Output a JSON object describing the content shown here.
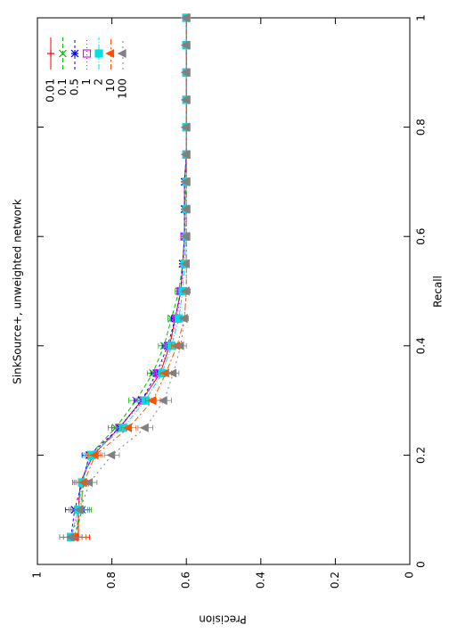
{
  "chart_data": {
    "type": "line",
    "title": "SinkSource+, unweighted network",
    "x_label": "Recall",
    "y_label": "Precision",
    "x": [
      0.05,
      0.1,
      0.15,
      0.2,
      0.25,
      0.3,
      0.35,
      0.4,
      0.45,
      0.5,
      0.55,
      0.6,
      0.65,
      0.7,
      0.75,
      0.8,
      0.85,
      0.9,
      0.95,
      1
    ],
    "xlim": [
      0,
      1
    ],
    "xticks": [
      0,
      0.2,
      0.4,
      0.6,
      0.8,
      1
    ],
    "ylim": [
      0,
      1
    ],
    "yticks": [
      0,
      0.2,
      0.4,
      0.6,
      0.8,
      1
    ],
    "rotation": -90,
    "legend": "top-right",
    "grid": false,
    "series": [
      {
        "name": "0.01",
        "color": "#ff0000",
        "marker": "plus",
        "dash": "none",
        "values": [
          0.89,
          0.89,
          0.885,
          0.85,
          0.78,
          0.72,
          0.67,
          0.645,
          0.63,
          0.615,
          0.61,
          0.605,
          0.605,
          0.605,
          0.6,
          0.6,
          0.6,
          0.6,
          0.6,
          0.6
        ],
        "errors": [
          0.03,
          0.025,
          0.02,
          0.02,
          0.02,
          0.02,
          0.015,
          0.015,
          0.01,
          0.01,
          0.005,
          0.005,
          0.005,
          0.005,
          0.005,
          0.005,
          0.005,
          0.005,
          0.005,
          0.005
        ]
      },
      {
        "name": "0.1",
        "color": "#00c000",
        "marker": "cross",
        "dash": "5,3",
        "values": [
          0.9,
          0.88,
          0.88,
          0.86,
          0.79,
          0.735,
          0.69,
          0.66,
          0.64,
          0.62,
          0.61,
          0.605,
          0.605,
          0.6,
          0.6,
          0.6,
          0.6,
          0.6,
          0.6,
          0.6
        ],
        "errors": [
          0.03,
          0.025,
          0.02,
          0.02,
          0.02,
          0.02,
          0.015,
          0.015,
          0.01,
          0.01,
          0.005,
          0.005,
          0.005,
          0.005,
          0.005,
          0.005,
          0.005,
          0.005,
          0.005,
          0.005
        ]
      },
      {
        "name": "0.5",
        "color": "#0000ff",
        "marker": "star",
        "dash": "3,3",
        "values": [
          0.91,
          0.9,
          0.88,
          0.86,
          0.78,
          0.72,
          0.68,
          0.65,
          0.63,
          0.615,
          0.61,
          0.605,
          0.605,
          0.605,
          0.6,
          0.6,
          0.6,
          0.6,
          0.6,
          0.6
        ],
        "errors": [
          0.03,
          0.025,
          0.02,
          0.02,
          0.02,
          0.02,
          0.015,
          0.015,
          0.01,
          0.01,
          0.005,
          0.005,
          0.005,
          0.005,
          0.005,
          0.005,
          0.005,
          0.005,
          0.005,
          0.005
        ]
      },
      {
        "name": "1",
        "color": "#ff00ff",
        "marker": "square-open",
        "dash": "1,3",
        "values": [
          0.91,
          0.89,
          0.88,
          0.855,
          0.78,
          0.715,
          0.675,
          0.645,
          0.625,
          0.615,
          0.605,
          0.605,
          0.6,
          0.6,
          0.6,
          0.6,
          0.6,
          0.6,
          0.6,
          0.6
        ],
        "errors": [
          0.03,
          0.025,
          0.02,
          0.02,
          0.02,
          0.02,
          0.015,
          0.015,
          0.01,
          0.01,
          0.005,
          0.005,
          0.005,
          0.005,
          0.005,
          0.005,
          0.005,
          0.005,
          0.005,
          0.005
        ]
      },
      {
        "name": "2",
        "color": "#00e0e0",
        "marker": "square",
        "dash": "6,2,1,2",
        "values": [
          0.91,
          0.89,
          0.88,
          0.855,
          0.77,
          0.71,
          0.665,
          0.64,
          0.62,
          0.61,
          0.605,
          0.6,
          0.6,
          0.6,
          0.6,
          0.6,
          0.6,
          0.6,
          0.6,
          0.6
        ],
        "errors": [
          0.03,
          0.025,
          0.02,
          0.02,
          0.02,
          0.02,
          0.015,
          0.015,
          0.01,
          0.01,
          0.005,
          0.005,
          0.005,
          0.005,
          0.005,
          0.005,
          0.005,
          0.005,
          0.005,
          0.005
        ]
      },
      {
        "name": "10",
        "color": "#ff5000",
        "marker": "triangle",
        "dash": "6,3,2,3",
        "values": [
          0.9,
          0.885,
          0.875,
          0.845,
          0.755,
          0.69,
          0.655,
          0.625,
          0.605,
          0.6,
          0.6,
          0.6,
          0.6,
          0.6,
          0.6,
          0.6,
          0.6,
          0.6,
          0.6,
          0.6
        ],
        "errors": [
          0.03,
          0.025,
          0.02,
          0.02,
          0.02,
          0.02,
          0.015,
          0.015,
          0.01,
          0.01,
          0.005,
          0.005,
          0.005,
          0.005,
          0.005,
          0.005,
          0.005,
          0.005,
          0.005,
          0.005
        ]
      },
      {
        "name": "100",
        "color": "#808080",
        "marker": "triangle",
        "dash": "2,4",
        "values": [
          0.91,
          0.885,
          0.86,
          0.8,
          0.71,
          0.66,
          0.635,
          0.615,
          0.605,
          0.6,
          0.6,
          0.6,
          0.6,
          0.6,
          0.6,
          0.6,
          0.6,
          0.6,
          0.6,
          0.6
        ],
        "errors": [
          0.03,
          0.025,
          0.02,
          0.02,
          0.02,
          0.02,
          0.015,
          0.015,
          0.01,
          0.01,
          0.005,
          0.005,
          0.005,
          0.005,
          0.005,
          0.005,
          0.005,
          0.005,
          0.005,
          0.005
        ]
      }
    ]
  }
}
